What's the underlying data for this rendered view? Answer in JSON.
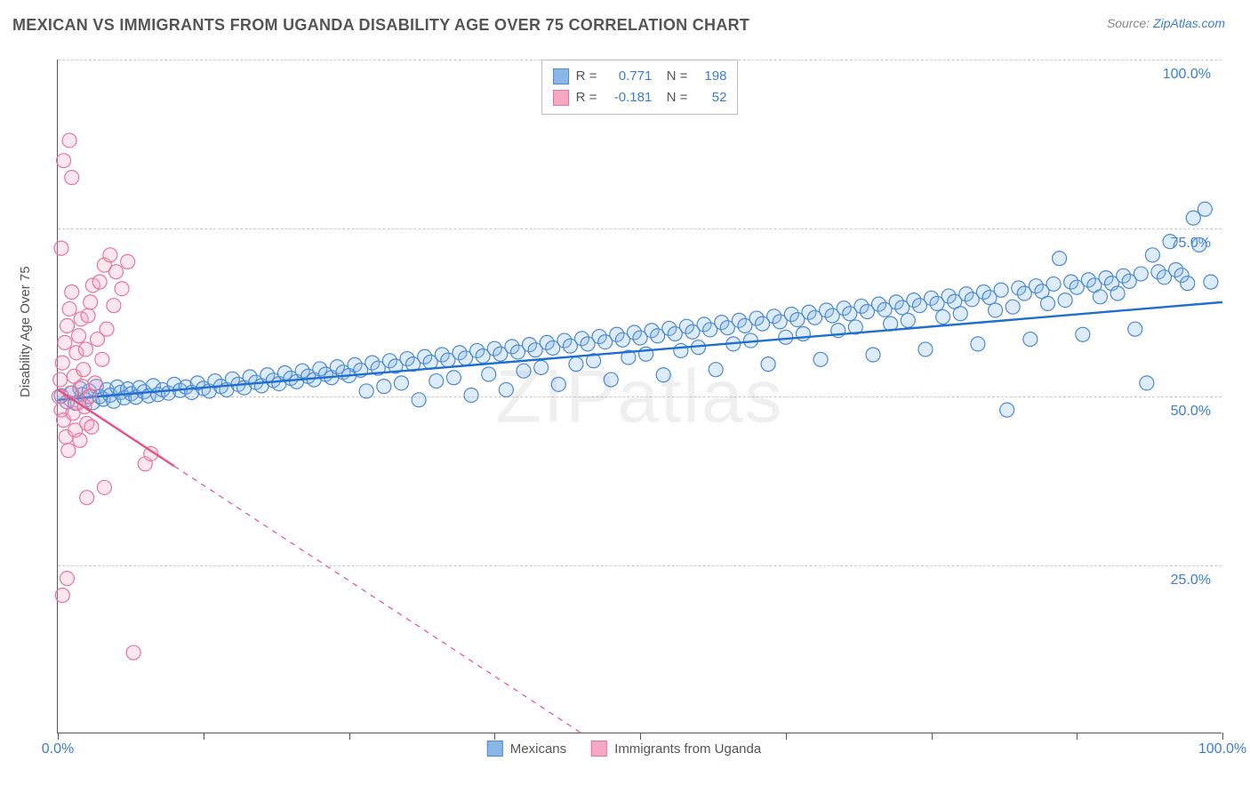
{
  "header": {
    "title": "MEXICAN VS IMMIGRANTS FROM UGANDA DISABILITY AGE OVER 75 CORRELATION CHART",
    "source_prefix": "Source: ",
    "source_link": "ZipAtlas.com"
  },
  "chart": {
    "type": "scatter",
    "ylabel": "Disability Age Over 75",
    "watermark": "ZIPatlas",
    "xlim": [
      0,
      100
    ],
    "ylim": [
      0,
      100
    ],
    "x_tick_positions": [
      0,
      12.5,
      25,
      37.5,
      50,
      62.5,
      75,
      87.5,
      100
    ],
    "x_tick_labels": {
      "0": "0.0%",
      "100": "100.0%"
    },
    "y_gridlines": [
      25,
      50,
      75,
      100
    ],
    "y_tick_labels": {
      "25": "25.0%",
      "50": "50.0%",
      "75": "75.0%",
      "100": "100.0%"
    },
    "background_color": "#ffffff",
    "grid_color": "#cccccc",
    "axis_color": "#555555",
    "label_color": "#3b7dd8",
    "title_fontsize": 18,
    "label_fontsize": 15,
    "tick_fontsize": 16,
    "marker_radius": 8,
    "marker_stroke_width": 1.2,
    "marker_fill_opacity": 0.28,
    "trendline_width": 2.4,
    "series": [
      {
        "name": "Mexicans",
        "color_fill": "#8ab6e8",
        "color_stroke": "#4a8ad4",
        "trend_color": "#1f6fd0",
        "R": "0.771",
        "N": "198",
        "trendline": {
          "x1": 0,
          "y1": 49.5,
          "x2": 100,
          "y2": 64.0
        },
        "trend_dash_after_x": null,
        "points": [
          [
            0.3,
            50.1
          ],
          [
            0.8,
            49.2
          ],
          [
            1.2,
            50.5
          ],
          [
            1.5,
            49.0
          ],
          [
            1.9,
            51.2
          ],
          [
            2.1,
            50.3
          ],
          [
            2.4,
            49.5
          ],
          [
            2.7,
            50.8
          ],
          [
            3.0,
            49.1
          ],
          [
            3.3,
            51.5
          ],
          [
            3.6,
            50.0
          ],
          [
            3.9,
            49.6
          ],
          [
            4.2,
            51.0
          ],
          [
            4.5,
            50.2
          ],
          [
            4.8,
            49.3
          ],
          [
            5.1,
            51.4
          ],
          [
            5.4,
            50.6
          ],
          [
            5.7,
            49.8
          ],
          [
            6.0,
            51.1
          ],
          [
            6.3,
            50.4
          ],
          [
            6.7,
            49.9
          ],
          [
            7.0,
            51.3
          ],
          [
            7.4,
            50.7
          ],
          [
            7.8,
            50.1
          ],
          [
            8.2,
            51.6
          ],
          [
            8.6,
            50.3
          ],
          [
            9.0,
            51.0
          ],
          [
            9.5,
            50.5
          ],
          [
            10.0,
            51.8
          ],
          [
            10.5,
            50.9
          ],
          [
            11.0,
            51.4
          ],
          [
            11.5,
            50.6
          ],
          [
            12.0,
            52.0
          ],
          [
            12.5,
            51.2
          ],
          [
            13.0,
            50.8
          ],
          [
            13.5,
            52.3
          ],
          [
            14.0,
            51.5
          ],
          [
            14.5,
            51.0
          ],
          [
            15.0,
            52.6
          ],
          [
            15.5,
            51.8
          ],
          [
            16.0,
            51.3
          ],
          [
            16.5,
            52.9
          ],
          [
            17.0,
            52.1
          ],
          [
            17.5,
            51.6
          ],
          [
            18.0,
            53.2
          ],
          [
            18.5,
            52.4
          ],
          [
            19.0,
            51.9
          ],
          [
            19.5,
            53.5
          ],
          [
            20.0,
            52.7
          ],
          [
            20.5,
            52.2
          ],
          [
            21.0,
            53.8
          ],
          [
            21.5,
            53.0
          ],
          [
            22.0,
            52.5
          ],
          [
            22.5,
            54.1
          ],
          [
            23.0,
            53.3
          ],
          [
            23.5,
            52.8
          ],
          [
            24.0,
            54.4
          ],
          [
            24.5,
            53.6
          ],
          [
            25.0,
            53.1
          ],
          [
            25.5,
            54.7
          ],
          [
            26.0,
            53.9
          ],
          [
            26.5,
            50.8
          ],
          [
            27.0,
            55.0
          ],
          [
            27.5,
            54.2
          ],
          [
            28.0,
            51.5
          ],
          [
            28.5,
            55.3
          ],
          [
            29.0,
            54.5
          ],
          [
            29.5,
            52.0
          ],
          [
            30.0,
            55.6
          ],
          [
            30.5,
            54.8
          ],
          [
            31.0,
            49.5
          ],
          [
            31.5,
            55.9
          ],
          [
            32.0,
            55.1
          ],
          [
            32.5,
            52.3
          ],
          [
            33.0,
            56.2
          ],
          [
            33.5,
            55.4
          ],
          [
            34.0,
            52.8
          ],
          [
            34.5,
            56.5
          ],
          [
            35.0,
            55.7
          ],
          [
            35.5,
            50.2
          ],
          [
            36.0,
            56.8
          ],
          [
            36.5,
            56.0
          ],
          [
            37.0,
            53.3
          ],
          [
            37.5,
            57.1
          ],
          [
            38.0,
            56.3
          ],
          [
            38.5,
            51.0
          ],
          [
            39.0,
            57.4
          ],
          [
            39.5,
            56.6
          ],
          [
            40.0,
            53.8
          ],
          [
            40.5,
            57.7
          ],
          [
            41.0,
            56.9
          ],
          [
            41.5,
            54.3
          ],
          [
            42.0,
            58.0
          ],
          [
            42.5,
            57.2
          ],
          [
            43.0,
            51.8
          ],
          [
            43.5,
            58.3
          ],
          [
            44.0,
            57.5
          ],
          [
            44.5,
            54.8
          ],
          [
            45.0,
            58.6
          ],
          [
            45.5,
            57.8
          ],
          [
            46.0,
            55.3
          ],
          [
            46.5,
            58.9
          ],
          [
            47.0,
            58.1
          ],
          [
            47.5,
            52.5
          ],
          [
            48.0,
            59.2
          ],
          [
            48.5,
            58.4
          ],
          [
            49.0,
            55.8
          ],
          [
            49.5,
            59.5
          ],
          [
            50.0,
            58.7
          ],
          [
            50.5,
            56.3
          ],
          [
            51.0,
            59.8
          ],
          [
            51.5,
            59.0
          ],
          [
            52.0,
            53.2
          ],
          [
            52.5,
            60.1
          ],
          [
            53.0,
            59.3
          ],
          [
            53.5,
            56.8
          ],
          [
            54.0,
            60.4
          ],
          [
            54.5,
            59.6
          ],
          [
            55.0,
            57.3
          ],
          [
            55.5,
            60.7
          ],
          [
            56.0,
            59.9
          ],
          [
            56.5,
            54.0
          ],
          [
            57.0,
            61.0
          ],
          [
            57.5,
            60.2
          ],
          [
            58.0,
            57.8
          ],
          [
            58.5,
            61.3
          ],
          [
            59.0,
            60.5
          ],
          [
            59.5,
            58.3
          ],
          [
            60.0,
            61.6
          ],
          [
            60.5,
            60.8
          ],
          [
            61.0,
            54.8
          ],
          [
            61.5,
            61.9
          ],
          [
            62.0,
            61.1
          ],
          [
            62.5,
            58.8
          ],
          [
            63.0,
            62.2
          ],
          [
            63.5,
            61.4
          ],
          [
            64.0,
            59.3
          ],
          [
            64.5,
            62.5
          ],
          [
            65.0,
            61.7
          ],
          [
            65.5,
            55.5
          ],
          [
            66.0,
            62.8
          ],
          [
            66.5,
            62.0
          ],
          [
            67.0,
            59.8
          ],
          [
            67.5,
            63.1
          ],
          [
            68.0,
            62.3
          ],
          [
            68.5,
            60.3
          ],
          [
            69.0,
            63.4
          ],
          [
            69.5,
            62.6
          ],
          [
            70.0,
            56.2
          ],
          [
            70.5,
            63.7
          ],
          [
            71.0,
            62.9
          ],
          [
            71.5,
            60.8
          ],
          [
            72.0,
            64.0
          ],
          [
            72.5,
            63.2
          ],
          [
            73.0,
            61.3
          ],
          [
            73.5,
            64.3
          ],
          [
            74.0,
            63.5
          ],
          [
            74.5,
            57.0
          ],
          [
            75.0,
            64.6
          ],
          [
            75.5,
            63.8
          ],
          [
            76.0,
            61.8
          ],
          [
            76.5,
            64.9
          ],
          [
            77.0,
            64.1
          ],
          [
            77.5,
            62.3
          ],
          [
            78.0,
            65.2
          ],
          [
            78.5,
            64.4
          ],
          [
            79.0,
            57.8
          ],
          [
            79.5,
            65.5
          ],
          [
            80.0,
            64.7
          ],
          [
            80.5,
            62.8
          ],
          [
            81.0,
            65.8
          ],
          [
            81.5,
            48.0
          ],
          [
            82.0,
            63.3
          ],
          [
            82.5,
            66.1
          ],
          [
            83.0,
            65.3
          ],
          [
            83.5,
            58.5
          ],
          [
            84.0,
            66.4
          ],
          [
            84.5,
            65.6
          ],
          [
            85.0,
            63.8
          ],
          [
            85.5,
            66.7
          ],
          [
            86.0,
            70.5
          ],
          [
            86.5,
            64.3
          ],
          [
            87.0,
            67.0
          ],
          [
            87.5,
            66.2
          ],
          [
            88.0,
            59.2
          ],
          [
            88.5,
            67.3
          ],
          [
            89.0,
            66.5
          ],
          [
            89.5,
            64.8
          ],
          [
            90.0,
            67.6
          ],
          [
            90.5,
            66.8
          ],
          [
            91.0,
            65.3
          ],
          [
            91.5,
            67.9
          ],
          [
            92.0,
            67.1
          ],
          [
            92.5,
            60.0
          ],
          [
            93.0,
            68.2
          ],
          [
            93.5,
            52.0
          ],
          [
            94.0,
            71.0
          ],
          [
            94.5,
            68.5
          ],
          [
            95.0,
            67.7
          ],
          [
            95.5,
            73.0
          ],
          [
            96.0,
            68.8
          ],
          [
            96.5,
            68.0
          ],
          [
            97.0,
            66.8
          ],
          [
            97.5,
            76.5
          ],
          [
            98.0,
            72.5
          ],
          [
            98.5,
            77.8
          ],
          [
            99.0,
            67.0
          ]
        ]
      },
      {
        "name": "Immigrants from Uganda",
        "color_fill": "#f5a8c0",
        "color_stroke": "#e8739c",
        "trend_color": "#e8507f",
        "R": "-0.181",
        "N": "52",
        "trendline": {
          "x1": 0,
          "y1": 51.0,
          "x2": 45,
          "y2": 0
        },
        "trend_dash_after_x": 10,
        "points": [
          [
            0.1,
            50.0
          ],
          [
            0.2,
            52.5
          ],
          [
            0.3,
            48.0
          ],
          [
            0.4,
            55.0
          ],
          [
            0.5,
            46.5
          ],
          [
            0.6,
            58.0
          ],
          [
            0.7,
            44.0
          ],
          [
            0.8,
            60.5
          ],
          [
            0.9,
            42.0
          ],
          [
            1.0,
            63.0
          ],
          [
            1.1,
            50.5
          ],
          [
            1.2,
            65.5
          ],
          [
            1.3,
            47.5
          ],
          [
            1.4,
            53.0
          ],
          [
            1.5,
            45.0
          ],
          [
            1.6,
            56.5
          ],
          [
            1.7,
            49.0
          ],
          [
            1.8,
            59.0
          ],
          [
            1.9,
            43.5
          ],
          [
            2.0,
            61.5
          ],
          [
            2.1,
            51.5
          ],
          [
            2.2,
            54.0
          ],
          [
            2.3,
            48.5
          ],
          [
            2.4,
            57.0
          ],
          [
            2.5,
            46.0
          ],
          [
            2.6,
            62.0
          ],
          [
            2.7,
            50.0
          ],
          [
            2.8,
            64.0
          ],
          [
            2.9,
            45.5
          ],
          [
            3.0,
            66.5
          ],
          [
            3.2,
            52.0
          ],
          [
            3.4,
            58.5
          ],
          [
            3.6,
            67.0
          ],
          [
            3.8,
            55.5
          ],
          [
            4.0,
            69.5
          ],
          [
            4.2,
            60.0
          ],
          [
            4.5,
            71.0
          ],
          [
            4.8,
            63.5
          ],
          [
            5.0,
            68.5
          ],
          [
            5.5,
            66.0
          ],
          [
            6.0,
            70.0
          ],
          [
            1.0,
            88.0
          ],
          [
            0.3,
            72.0
          ],
          [
            0.5,
            85.0
          ],
          [
            1.2,
            82.5
          ],
          [
            0.8,
            23.0
          ],
          [
            0.4,
            20.5
          ],
          [
            2.5,
            35.0
          ],
          [
            4.0,
            36.5
          ],
          [
            6.5,
            12.0
          ],
          [
            7.5,
            40.0
          ],
          [
            8.0,
            41.5
          ]
        ]
      }
    ],
    "bottom_legend": [
      "Mexicans",
      "Immigrants from Uganda"
    ]
  }
}
